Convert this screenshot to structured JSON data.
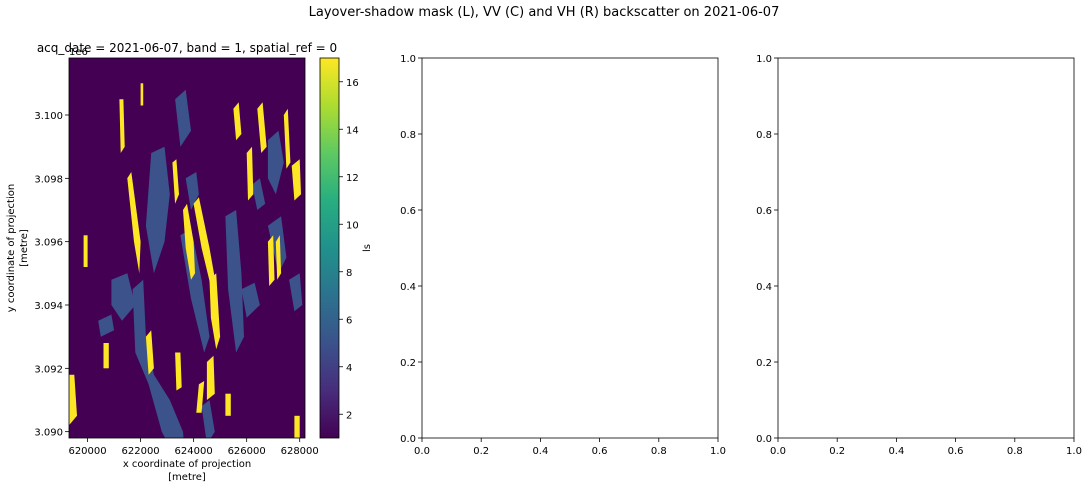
{
  "figure": {
    "suptitle": "Layover-shadow mask (L), VV (C) and VH (R) backscatter on 2021-06-07"
  },
  "chart_data": [
    {
      "type": "heatmap",
      "title": "acq_date = 2021-06-07, band = 1, spatial_ref = 0",
      "xlabel_line1": "x coordinate of projection",
      "xlabel_line2": "[metre]",
      "ylabel_line1": "y coordinate of projection",
      "ylabel_line2": "[metre]",
      "y_offset_text": "1e6",
      "xlim": [
        619300,
        628200
      ],
      "ylim": [
        3.0898,
        3.1018
      ],
      "xticks": [
        620000,
        622000,
        624000,
        626000,
        628000
      ],
      "xtick_labels": [
        "620000",
        "622000",
        "624000",
        "626000",
        "628000"
      ],
      "yticks": [
        3.09,
        3.092,
        3.094,
        3.096,
        3.098,
        3.1
      ],
      "ytick_labels": [
        "3.090",
        "3.092",
        "3.094",
        "3.096",
        "3.098",
        "3.100"
      ],
      "colorbar": {
        "label": "ls",
        "range": [
          1,
          17
        ],
        "ticks": [
          2,
          4,
          6,
          8,
          10,
          12,
          14,
          16
        ],
        "tick_labels": [
          "2",
          "4",
          "6",
          "8",
          "10",
          "12",
          "14",
          "16"
        ],
        "colormap": "viridis"
      },
      "value_classes": [
        {
          "value": 1,
          "color": "#440154"
        },
        {
          "value": 5,
          "color": "#3b528b"
        },
        {
          "value": 17,
          "color": "#fde725"
        }
      ],
      "regions": [
        {
          "value": 5,
          "points": [
            [
              622400,
              3.0988
            ],
            [
              622900,
              3.099
            ],
            [
              623100,
              3.0975
            ],
            [
              622900,
              3.096
            ],
            [
              622500,
              3.095
            ],
            [
              622200,
              3.0965
            ]
          ]
        },
        {
          "value": 5,
          "points": [
            [
              621700,
              3.0945
            ],
            [
              622100,
              3.0948
            ],
            [
              622200,
              3.093
            ],
            [
              622500,
              3.0918
            ],
            [
              623100,
              3.091
            ],
            [
              623600,
              3.09
            ],
            [
              623700,
              3.089
            ],
            [
              623300,
              3.0892
            ],
            [
              622800,
              3.09
            ],
            [
              622300,
              3.0915
            ],
            [
              621800,
              3.0925
            ]
          ]
        },
        {
          "value": 5,
          "points": [
            [
              620900,
              3.0948
            ],
            [
              621500,
              3.095
            ],
            [
              621800,
              3.094
            ],
            [
              621300,
              3.0935
            ],
            [
              620900,
              3.094
            ]
          ]
        },
        {
          "value": 5,
          "points": [
            [
              623700,
              3.098
            ],
            [
              624100,
              3.0982
            ],
            [
              624200,
              3.0975
            ],
            [
              623900,
              3.097
            ]
          ]
        },
        {
          "value": 5,
          "points": [
            [
              623300,
              3.1005
            ],
            [
              623700,
              3.1008
            ],
            [
              623900,
              3.0995
            ],
            [
              623500,
              3.099
            ]
          ]
        },
        {
          "value": 5,
          "points": [
            [
              623500,
              3.0962
            ],
            [
              623900,
              3.0964
            ],
            [
              624300,
              3.0948
            ],
            [
              624600,
              3.093
            ],
            [
              624400,
              3.0925
            ],
            [
              623900,
              3.0942
            ]
          ]
        },
        {
          "value": 5,
          "points": [
            [
              625200,
              3.0968
            ],
            [
              625600,
              3.097
            ],
            [
              625800,
              3.095
            ],
            [
              625900,
              3.093
            ],
            [
              625600,
              3.0925
            ],
            [
              625300,
              3.0945
            ]
          ]
        },
        {
          "value": 5,
          "points": [
            [
              625800,
              3.0945
            ],
            [
              626300,
              3.0947
            ],
            [
              626500,
              3.094
            ],
            [
              626000,
              3.0936
            ]
          ]
        },
        {
          "value": 5,
          "points": [
            [
              626800,
              3.0992
            ],
            [
              627200,
              3.0995
            ],
            [
              627400,
              3.0985
            ],
            [
              627100,
              3.0975
            ],
            [
              626800,
              3.098
            ]
          ]
        },
        {
          "value": 5,
          "points": [
            [
              626800,
              3.0965
            ],
            [
              627300,
              3.0968
            ],
            [
              627500,
              3.0955
            ],
            [
              627200,
              3.095
            ]
          ]
        },
        {
          "value": 5,
          "points": [
            [
              627600,
              3.0948
            ],
            [
              628000,
              3.095
            ],
            [
              628100,
              3.094
            ],
            [
              627800,
              3.0938
            ]
          ]
        },
        {
          "value": 5,
          "points": [
            [
              626200,
              3.0978
            ],
            [
              626500,
              3.098
            ],
            [
              626700,
              3.0972
            ],
            [
              626400,
              3.097
            ]
          ]
        },
        {
          "value": 5,
          "points": [
            [
              624300,
              3.0908
            ],
            [
              624600,
              3.091
            ],
            [
              624800,
              3.09
            ],
            [
              624500,
              3.0896
            ]
          ]
        },
        {
          "value": 5,
          "points": [
            [
              620400,
              3.0935
            ],
            [
              620900,
              3.0937
            ],
            [
              621000,
              3.0932
            ],
            [
              620500,
              3.093
            ]
          ]
        },
        {
          "value": 17,
          "points": [
            [
              621200,
              3.1005
            ],
            [
              621350,
              3.1005
            ],
            [
              621400,
              3.099
            ],
            [
              621250,
              3.0988
            ]
          ]
        },
        {
          "value": 17,
          "points": [
            [
              621500,
              3.098
            ],
            [
              621650,
              3.0982
            ],
            [
              622000,
              3.096
            ],
            [
              621950,
              3.095
            ],
            [
              621750,
              3.096
            ]
          ]
        },
        {
          "value": 17,
          "points": [
            [
              622200,
              3.093
            ],
            [
              622400,
              3.0932
            ],
            [
              622500,
              3.092
            ],
            [
              622300,
              3.0918
            ]
          ]
        },
        {
          "value": 17,
          "points": [
            [
              623200,
              3.0985
            ],
            [
              623350,
              3.0986
            ],
            [
              623450,
              3.0975
            ],
            [
              623300,
              3.0972
            ]
          ]
        },
        {
          "value": 17,
          "points": [
            [
              623600,
              3.097
            ],
            [
              623750,
              3.0972
            ],
            [
              624000,
              3.096
            ],
            [
              624050,
              3.095
            ],
            [
              623900,
              3.0948
            ],
            [
              623700,
              3.0958
            ]
          ]
        },
        {
          "value": 17,
          "points": [
            [
              624000,
              3.0972
            ],
            [
              624200,
              3.0974
            ],
            [
              624600,
              3.0958
            ],
            [
              624850,
              3.0946
            ],
            [
              624700,
              3.0944
            ],
            [
              624300,
              3.0958
            ]
          ]
        },
        {
          "value": 17,
          "points": [
            [
              624600,
              3.0948
            ],
            [
              624850,
              3.095
            ],
            [
              625000,
              3.093
            ],
            [
              624850,
              3.0926
            ],
            [
              624650,
              3.0936
            ]
          ]
        },
        {
          "value": 17,
          "points": [
            [
              624500,
              3.0922
            ],
            [
              624750,
              3.0924
            ],
            [
              624800,
              3.0912
            ],
            [
              624500,
              3.091
            ]
          ]
        },
        {
          "value": 17,
          "points": [
            [
              624200,
              3.0915
            ],
            [
              624400,
              3.0916
            ],
            [
              624300,
              3.0906
            ],
            [
              624100,
              3.0906
            ]
          ]
        },
        {
          "value": 17,
          "points": [
            [
              625500,
              3.1002
            ],
            [
              625700,
              3.1004
            ],
            [
              625800,
              3.0994
            ],
            [
              625600,
              3.0992
            ]
          ]
        },
        {
          "value": 17,
          "points": [
            [
              626000,
              3.0988
            ],
            [
              626200,
              3.099
            ],
            [
              626250,
              3.0975
            ],
            [
              626050,
              3.0973
            ]
          ]
        },
        {
          "value": 17,
          "points": [
            [
              626400,
              3.1002
            ],
            [
              626600,
              3.1004
            ],
            [
              626750,
              3.099
            ],
            [
              626550,
              3.0988
            ]
          ]
        },
        {
          "value": 17,
          "points": [
            [
              626800,
              3.096
            ],
            [
              627000,
              3.0962
            ],
            [
              627050,
              3.0948
            ],
            [
              626850,
              3.0946
            ]
          ]
        },
        {
          "value": 17,
          "points": [
            [
              627400,
              3.1
            ],
            [
              627550,
              3.1002
            ],
            [
              627650,
              3.0985
            ],
            [
              627500,
              3.0983
            ]
          ]
        },
        {
          "value": 17,
          "points": [
            [
              627700,
              3.0984
            ],
            [
              628000,
              3.0986
            ],
            [
              628050,
              3.0975
            ],
            [
              627800,
              3.0973
            ]
          ]
        },
        {
          "value": 17,
          "points": [
            [
              627100,
              3.096
            ],
            [
              627250,
              3.0962
            ],
            [
              627300,
              3.095
            ],
            [
              627150,
              3.0948
            ]
          ]
        },
        {
          "value": 17,
          "points": [
            [
              619300,
              3.0918
            ],
            [
              619500,
              3.0918
            ],
            [
              619600,
              3.0905
            ],
            [
              619300,
              3.0902
            ]
          ]
        },
        {
          "value": 17,
          "points": [
            [
              619850,
              3.0962
            ],
            [
              620000,
              3.0962
            ],
            [
              620000,
              3.0952
            ],
            [
              619850,
              3.0952
            ]
          ]
        },
        {
          "value": 17,
          "points": [
            [
              620600,
              3.0928
            ],
            [
              620800,
              3.0928
            ],
            [
              620800,
              3.092
            ],
            [
              620600,
              3.092
            ]
          ]
        },
        {
          "value": 17,
          "points": [
            [
              623300,
              3.0925
            ],
            [
              623500,
              3.0925
            ],
            [
              623550,
              3.0914
            ],
            [
              623350,
              3.0913
            ]
          ]
        },
        {
          "value": 17,
          "points": [
            [
              622000,
              3.101
            ],
            [
              622100,
              3.101
            ],
            [
              622100,
              3.1003
            ],
            [
              622000,
              3.1003
            ]
          ]
        },
        {
          "value": 17,
          "points": [
            [
              625200,
              3.0912
            ],
            [
              625400,
              3.0912
            ],
            [
              625400,
              3.0905
            ],
            [
              625200,
              3.0905
            ]
          ]
        },
        {
          "value": 17,
          "points": [
            [
              627800,
              3.0905
            ],
            [
              628000,
              3.0905
            ],
            [
              628000,
              3.0898
            ],
            [
              627800,
              3.0898
            ]
          ]
        }
      ]
    },
    {
      "type": "line",
      "title": "",
      "xlim": [
        0,
        1
      ],
      "ylim": [
        0,
        1
      ],
      "xticks": [
        0,
        0.2,
        0.4,
        0.6,
        0.8,
        1
      ],
      "xtick_labels": [
        "0.0",
        "0.2",
        "0.4",
        "0.6",
        "0.8",
        "1.0"
      ],
      "yticks": [
        0,
        0.2,
        0.4,
        0.6,
        0.8,
        1
      ],
      "ytick_labels": [
        "0.0",
        "0.2",
        "0.4",
        "0.6",
        "0.8",
        "1.0"
      ],
      "series": []
    },
    {
      "type": "line",
      "title": "",
      "xlim": [
        0,
        1
      ],
      "ylim": [
        0,
        1
      ],
      "xticks": [
        0,
        0.2,
        0.4,
        0.6,
        0.8,
        1
      ],
      "xtick_labels": [
        "0.0",
        "0.2",
        "0.4",
        "0.6",
        "0.8",
        "1.0"
      ],
      "yticks": [
        0,
        0.2,
        0.4,
        0.6,
        0.8,
        1
      ],
      "ytick_labels": [
        "0.0",
        "0.2",
        "0.4",
        "0.6",
        "0.8",
        "1.0"
      ],
      "series": []
    }
  ]
}
